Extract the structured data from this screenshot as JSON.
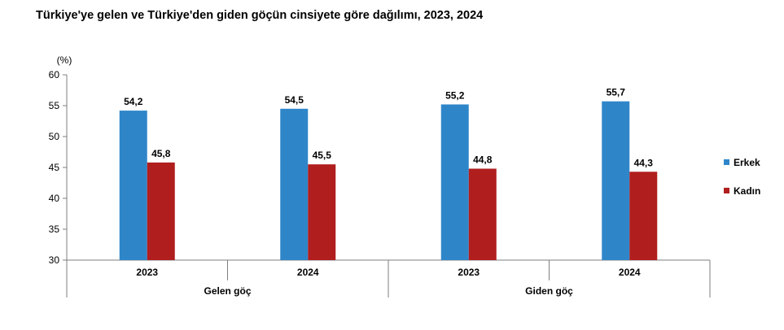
{
  "title": "Türkiye'ye gelen ve Türkiye'den giden göçün cinsiyete göre dağılımı, 2023, 2024",
  "chart_data": {
    "type": "bar",
    "title": "Türkiye'ye gelen ve Türkiye'den giden göçün cinsiyete göre dağılımı, 2023, 2024",
    "unit": "(%)",
    "ylim": [
      30,
      60
    ],
    "yticks": [
      "30",
      "35",
      "40",
      "45",
      "50",
      "55",
      "60"
    ],
    "grid": false,
    "legend_position": "right",
    "groups": [
      {
        "label": "Gelen göç",
        "categories": [
          "2023",
          "2024"
        ]
      },
      {
        "label": "Giden göç",
        "categories": [
          "2023",
          "2024"
        ]
      }
    ],
    "categories": [
      "2023",
      "2024",
      "2023",
      "2024"
    ],
    "series": [
      {
        "name": "Erkek",
        "color": "#2E86C9",
        "values": [
          54.2,
          54.5,
          55.2,
          55.7
        ],
        "labels": [
          "54,2",
          "54,5",
          "55,2",
          "55,7"
        ]
      },
      {
        "name": "Kadın",
        "color": "#B01E1E",
        "values": [
          45.8,
          45.5,
          44.8,
          44.3
        ],
        "labels": [
          "45,8",
          "45,5",
          "44,8",
          "44,3"
        ]
      }
    ]
  }
}
